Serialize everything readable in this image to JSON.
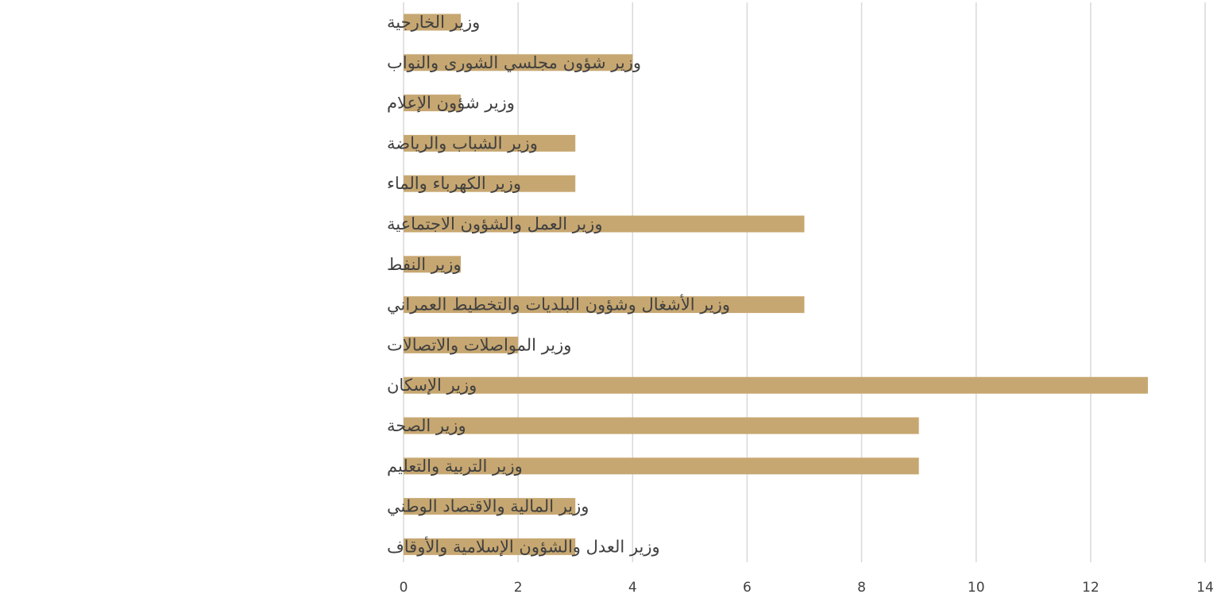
{
  "chart_data": {
    "type": "bar",
    "orientation": "horizontal",
    "categories": [
      "وزير الخارجية",
      "وزير شؤون مجلسي الشورى والنواب",
      "وزير شؤون الإعلام",
      "وزير الشباب والرياضة",
      "وزير الكهرباء والماء",
      "وزير العمل والشؤون الاجتماعية",
      "وزير النفط",
      "وزير الأشغال وشؤون البلديات والتخطيط العمراني",
      "وزير المواصلات والاتصالات",
      "وزير الإسكان",
      "وزير الصحة",
      "وزير التربية والتعليم",
      "وزير المالية والاقتصاد الوطني",
      "وزير العدل والشؤون الإسلامية والأوقاف"
    ],
    "values": [
      1,
      4,
      1,
      3,
      3,
      7,
      1,
      7,
      2,
      13,
      9,
      9,
      3,
      3
    ],
    "xlim": [
      0,
      14
    ],
    "xticks": [
      0,
      2,
      4,
      6,
      8,
      10,
      12,
      14
    ],
    "bar_color": "#C7A771",
    "gridline_color": "#D9D9D9",
    "grid": "vertical",
    "legend": "none",
    "title": "",
    "xlabel": "",
    "ylabel": ""
  }
}
